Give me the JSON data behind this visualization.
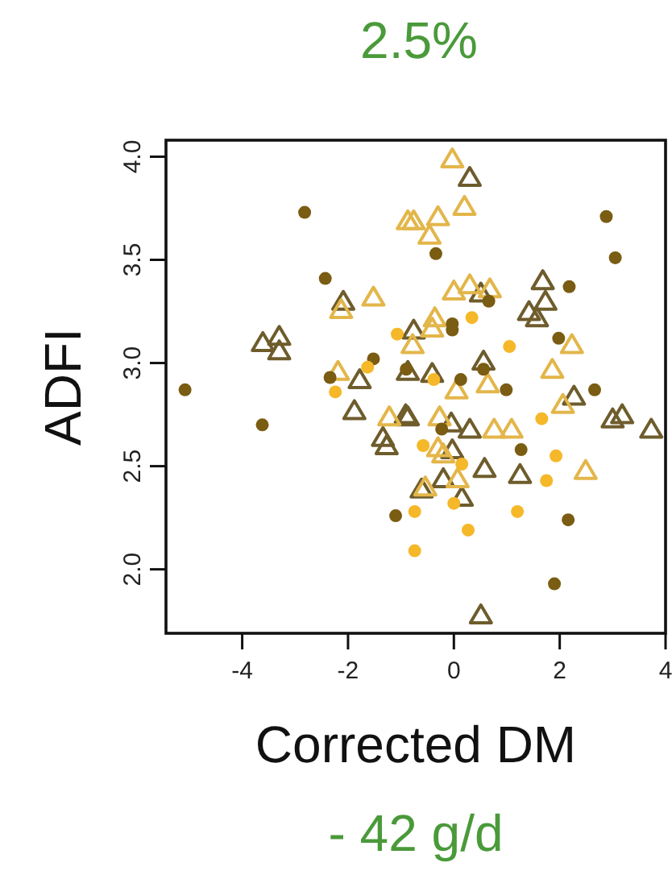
{
  "chart_data": {
    "type": "scatter",
    "title": "2.5%",
    "xlabel": "Corrected DM",
    "ylabel": "ADFI",
    "annotations": [
      "- 42 g/d"
    ],
    "xlim": [
      -5.44,
      4.0
    ],
    "ylim": [
      1.69,
      4.08
    ],
    "xticks": [
      -4,
      -2,
      0,
      2,
      4
    ],
    "yticks": [
      {
        "value": 2,
        "label": "2.0"
      },
      {
        "value": 2.5,
        "label": "2.5"
      },
      {
        "value": 3,
        "label": "3.0"
      },
      {
        "value": 3.5,
        "label": "3.5"
      },
      {
        "value": 4,
        "label": "4.0"
      }
    ],
    "grid": false,
    "series": [
      {
        "color": "#7a5c12",
        "marker": "circle",
        "x": [
          -2.82,
          -2.43,
          -3.62,
          -5.08,
          -1.1,
          -1.52,
          2.88,
          3.05,
          -0.34,
          2.18,
          0.66,
          -0.03,
          -0.03,
          1.98,
          0.13,
          0.99,
          2.66,
          -0.23,
          1.27,
          2.16,
          1.9,
          0.56,
          -2.34,
          -0.9
        ],
        "values": [
          3.73,
          3.41,
          2.7,
          2.87,
          2.26,
          3.02,
          3.71,
          3.51,
          3.53,
          3.37,
          3.3,
          3.19,
          3.16,
          3.12,
          2.92,
          2.87,
          2.87,
          2.68,
          2.58,
          2.24,
          1.93,
          2.97,
          2.93,
          2.97
        ]
      },
      {
        "color": "#f5b829",
        "marker": "circle",
        "x": [
          -1.07,
          -2.24,
          -0.74,
          -0.74,
          0.34,
          1.05,
          -0.38,
          1.66,
          -0.58,
          0.15,
          1.93,
          1.75,
          0.0,
          1.2,
          0.27,
          -1.63
        ],
        "values": [
          3.14,
          2.86,
          2.28,
          2.09,
          3.22,
          3.08,
          2.92,
          2.73,
          2.6,
          2.51,
          2.55,
          2.43,
          2.32,
          2.28,
          2.19,
          2.98
        ]
      },
      {
        "color": "#6e5c2c",
        "marker": "triangle",
        "x": [
          -2.09,
          -3.61,
          -3.3,
          -3.3,
          0.3,
          0.51,
          1.68,
          1.73,
          1.42,
          1.57,
          -0.76,
          0.56,
          -1.78,
          -1.88,
          -1.34,
          -1.27,
          -0.91,
          -0.87,
          -0.41,
          2.27,
          -0.87,
          -0.05,
          0.3,
          -0.03,
          3.0,
          3.18,
          3.73,
          0.58,
          1.25,
          -0.2,
          -0.61,
          0.15,
          0.51
        ],
        "values": [
          3.3,
          3.1,
          3.13,
          3.06,
          3.9,
          3.34,
          3.4,
          3.3,
          3.25,
          3.22,
          3.16,
          3.01,
          2.92,
          2.77,
          2.64,
          2.6,
          2.75,
          2.96,
          2.95,
          2.84,
          2.74,
          2.71,
          2.68,
          2.58,
          2.73,
          2.75,
          2.68,
          2.49,
          2.46,
          2.44,
          2.39,
          2.35,
          1.78
        ]
      },
      {
        "color": "#e3b64a",
        "marker": "triangle",
        "x": [
          -1.52,
          -2.13,
          -0.87,
          -2.19,
          -1.22,
          -0.03,
          0.2,
          -0.76,
          -0.3,
          -0.46,
          0.0,
          0.3,
          0.68,
          -0.36,
          -0.41,
          -0.78,
          2.23,
          0.05,
          0.64,
          1.86,
          2.06,
          -0.27,
          0.76,
          1.09,
          -0.3,
          -0.2,
          0.07,
          2.49,
          -0.54
        ],
        "values": [
          3.32,
          3.26,
          3.69,
          2.96,
          2.74,
          3.99,
          3.76,
          3.69,
          3.71,
          3.62,
          3.35,
          3.38,
          3.36,
          3.22,
          3.17,
          3.09,
          3.09,
          2.87,
          2.9,
          2.97,
          2.8,
          2.74,
          2.68,
          2.68,
          2.59,
          2.56,
          2.44,
          2.48,
          2.4
        ]
      }
    ]
  }
}
